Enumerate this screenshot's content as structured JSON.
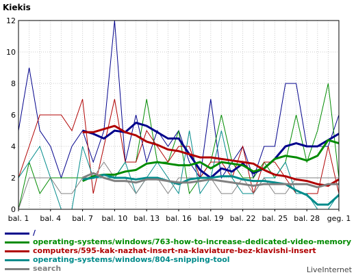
{
  "chart_data": {
    "type": "line",
    "title": "Kiekis",
    "xlabel": "",
    "ylabel": "",
    "x_ticks": [
      "bal. 1",
      "bal. 4",
      "bal. 7",
      "bal. 10",
      "bal. 13",
      "bal. 16",
      "bal. 19",
      "bal. 22",
      "bal. 25",
      "bal. 28",
      "geg. 1"
    ],
    "categories": [
      "bal. 1",
      "bal. 2",
      "bal. 3",
      "bal. 4",
      "bal. 5",
      "bal. 6",
      "bal. 7",
      "bal. 8",
      "bal. 9",
      "bal. 10",
      "bal. 11",
      "bal. 12",
      "bal. 13",
      "bal. 14",
      "bal. 15",
      "bal. 16",
      "bal. 17",
      "bal. 18",
      "bal. 19",
      "bal. 20",
      "bal. 21",
      "bal. 22",
      "bal. 23",
      "bal. 24",
      "bal. 25",
      "bal. 26",
      "bal. 27",
      "bal. 28",
      "bal. 29",
      "bal. 30",
      "geg. 1"
    ],
    "ylim": [
      0,
      12
    ],
    "y_ticks": [
      0,
      2,
      4,
      6,
      8,
      10,
      12
    ],
    "grid": true,
    "legend_position": "bottom",
    "series": [
      {
        "name": "/",
        "color": "#00008b",
        "values": [
          5,
          9,
          5,
          4,
          2,
          4,
          5,
          3,
          5,
          12,
          3,
          6,
          3,
          5,
          4,
          5,
          3,
          2,
          7,
          2,
          3,
          4,
          2,
          4,
          4,
          8,
          8,
          4,
          4,
          4,
          6
        ],
        "trend": [
          null,
          null,
          null,
          null,
          null,
          null,
          5.0,
          4.8,
          4.5,
          5.0,
          4.9,
          5.5,
          5.3,
          4.9,
          4.5,
          4.5,
          3.5,
          2.5,
          2.0,
          2.6,
          2.4,
          2.9,
          2.3,
          2.6,
          3.2,
          4.0,
          4.2,
          4.0,
          4.0,
          4.4,
          4.8
        ]
      },
      {
        "name": "operating-systems/windows/763-how-to-increase-dedicated-video-memory",
        "color": "#008b00",
        "values": [
          0,
          3,
          1,
          2,
          2,
          2,
          2,
          2,
          2,
          2,
          3,
          3,
          7,
          3,
          3,
          5,
          1,
          2,
          3,
          6,
          3,
          2,
          2,
          3,
          2,
          3,
          6,
          3,
          5,
          8,
          2
        ],
        "trend": [
          null,
          null,
          null,
          null,
          null,
          null,
          1.8,
          2.1,
          2.2,
          2.2,
          2.4,
          2.5,
          2.9,
          3.0,
          2.9,
          2.8,
          2.8,
          3.0,
          2.6,
          3.0,
          2.9,
          2.8,
          2.4,
          2.6,
          3.2,
          3.4,
          3.3,
          3.1,
          3.4,
          4.4,
          4.2
        ]
      },
      {
        "name": "computers/595-kak-nazhat-insert-na-klaviature-bez-klavishi-insert",
        "color": "#b00000",
        "values": [
          2,
          4,
          6,
          6,
          6,
          5,
          7,
          1,
          4,
          7,
          3,
          3,
          5,
          4,
          3,
          4,
          4,
          2,
          3,
          3,
          2,
          4,
          1,
          3,
          3,
          2,
          1,
          1,
          1,
          4,
          1
        ],
        "trend": [
          null,
          null,
          null,
          null,
          null,
          null,
          4.9,
          4.9,
          5.1,
          5.3,
          4.9,
          4.7,
          4.3,
          4.1,
          3.8,
          3.7,
          3.5,
          3.3,
          3.3,
          3.2,
          3.1,
          3.0,
          2.9,
          2.5,
          2.2,
          2.1,
          1.9,
          1.8,
          1.6,
          1.5,
          1.9
        ]
      },
      {
        "name": "operating-systems/windows/804-snipping-tool",
        "color": "#008b8b",
        "values": [
          2,
          3,
          4,
          2,
          0,
          0,
          4,
          2,
          2,
          2,
          3,
          1,
          2,
          3,
          2,
          1,
          5,
          1,
          2,
          5,
          2,
          1,
          1,
          2,
          2,
          3,
          1,
          1,
          0,
          0,
          1
        ],
        "trend": [
          null,
          null,
          null,
          null,
          null,
          null,
          1.9,
          2.0,
          2.2,
          2.0,
          2.0,
          1.9,
          2.0,
          2.0,
          1.8,
          1.6,
          1.9,
          2.0,
          2.0,
          2.1,
          2.1,
          1.9,
          1.8,
          1.8,
          1.7,
          1.6,
          1.2,
          0.9,
          0.3,
          0.3,
          0.9
        ]
      },
      {
        "name": "search",
        "color": "#808080",
        "values": [
          0,
          2,
          2,
          2,
          1,
          1,
          2,
          2,
          3,
          2,
          2,
          1,
          2,
          2,
          1,
          2,
          2,
          2,
          2,
          1,
          1,
          2,
          1,
          2,
          1,
          1,
          2,
          2,
          2,
          2,
          2
        ],
        "trend": [
          null,
          null,
          null,
          null,
          null,
          null,
          2.0,
          2.3,
          2.0,
          1.8,
          1.8,
          1.7,
          1.9,
          1.9,
          1.8,
          1.7,
          1.7,
          1.8,
          1.9,
          1.8,
          1.7,
          1.6,
          1.5,
          1.6,
          1.6,
          1.6,
          1.6,
          1.6,
          1.4,
          1.6,
          1.6
        ]
      }
    ]
  },
  "credit": "LiveInternet"
}
